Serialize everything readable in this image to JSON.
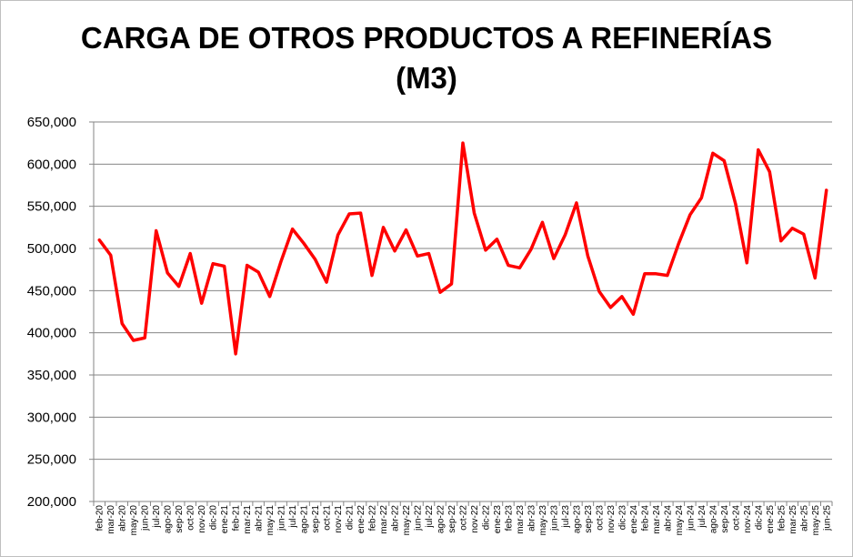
{
  "chart_data": {
    "type": "line",
    "title_line1": "CARGA DE OTROS PRODUCTOS A REFINERÍAS",
    "title_line2": "(M3)",
    "xlabel": "",
    "ylabel": "",
    "ylim": [
      200000,
      650000
    ],
    "y_ticks": [
      "200,000",
      "250,000",
      "300,000",
      "350,000",
      "400,000",
      "450,000",
      "500,000",
      "550,000",
      "600,000",
      "650,000"
    ],
    "grid": "horizontal",
    "line_color": "#ff0000",
    "categories": [
      "feb-20",
      "mar-20",
      "abr-20",
      "may-20",
      "jun-20",
      "jul-20",
      "ago-20",
      "sep-20",
      "oct-20",
      "nov-20",
      "dic-20",
      "ene-21",
      "feb-21",
      "mar-21",
      "abr-21",
      "may-21",
      "jun-21",
      "jul-21",
      "ago-21",
      "sep-21",
      "oct-21",
      "nov-21",
      "dic-21",
      "ene-22",
      "feb-22",
      "mar-22",
      "abr-22",
      "may-22",
      "jun-22",
      "jul-22",
      "ago-22",
      "sep-22",
      "oct-22",
      "nov-22",
      "dic-22",
      "ene-23",
      "feb-23",
      "mar-23",
      "abr-23",
      "may-23",
      "jun-23",
      "jul-23",
      "ago-23",
      "sep-23",
      "oct-23",
      "nov-23",
      "dic-23",
      "ene-24",
      "feb-24",
      "mar-24",
      "abr-24",
      "may-24",
      "jun-24",
      "jul-24",
      "ago-24",
      "sep-24",
      "oct-24",
      "nov-24",
      "dic-24",
      "ene-25",
      "feb-25",
      "mar-25",
      "abr-25",
      "may-25",
      "jun-25"
    ],
    "values": [
      510000,
      492000,
      411000,
      391000,
      394000,
      521000,
      471000,
      455000,
      494000,
      435000,
      482000,
      479000,
      375000,
      480000,
      472000,
      443000,
      485000,
      523000,
      506000,
      487000,
      460000,
      516000,
      541000,
      542000,
      468000,
      525000,
      497000,
      522000,
      491000,
      494000,
      448000,
      458000,
      625000,
      542000,
      498000,
      511000,
      480000,
      477000,
      499000,
      531000,
      488000,
      516000,
      554000,
      491000,
      449000,
      430000,
      443000,
      422000,
      470000,
      470000,
      468000,
      506000,
      540000,
      560000,
      613000,
      604000,
      553000,
      483000,
      617000,
      591000,
      509000,
      524000,
      517000,
      465000,
      569000
    ]
  }
}
